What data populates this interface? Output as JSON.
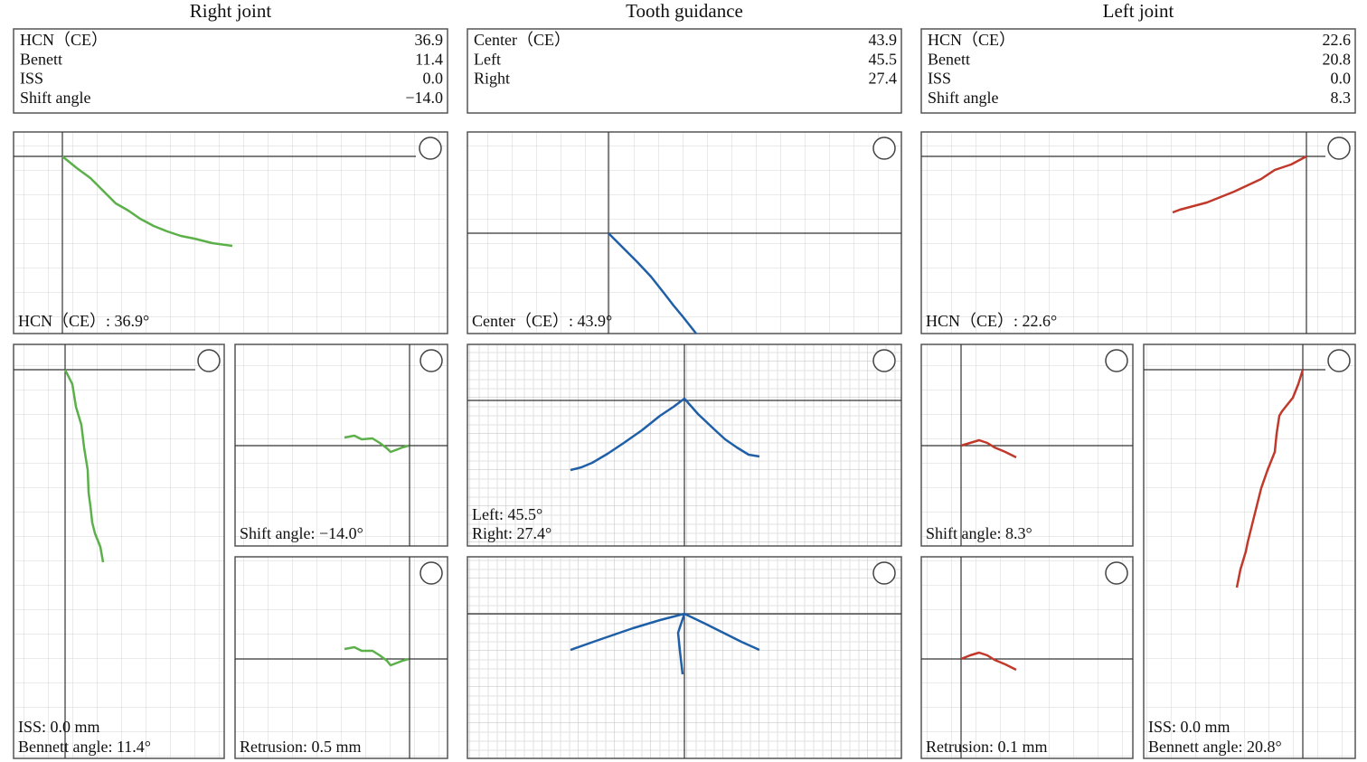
{
  "columns": [
    {
      "title": "Right joint",
      "info": [
        {
          "label": "HCN（CE）",
          "value": "36.9"
        },
        {
          "label": "Benett",
          "value": "11.4"
        },
        {
          "label": "ISS",
          "value": "0.0"
        },
        {
          "label": "Shift angle",
          "value": "−14.0"
        }
      ],
      "captions": [
        "HCN（CE）: 36.9°",
        "ISS: 0.0 mm",
        "Bennett angle: 11.4°",
        "Shift angle: −14.0°",
        "Retrusion: 0.5 mm"
      ]
    },
    {
      "title": "Tooth guidance",
      "info": [
        {
          "label": "Center（CE）",
          "value": "43.9"
        },
        {
          "label": "Left",
          "value": "45.5"
        },
        {
          "label": "Right",
          "value": "27.4"
        }
      ],
      "captions": [
        "Center（CE）: 43.9°",
        "Left: 45.5°",
        "Right: 27.4°"
      ]
    },
    {
      "title": "Left joint",
      "info": [
        {
          "label": "HCN（CE）",
          "value": "22.6"
        },
        {
          "label": "Benett",
          "value": "20.8"
        },
        {
          "label": "ISS",
          "value": "0.0"
        },
        {
          "label": "Shift angle",
          "value": "8.3"
        }
      ],
      "captions": [
        "HCN（CE）: 22.6°",
        "Shift angle: 8.3°",
        "Retrusion: 0.1 mm",
        "ISS: 0.0 mm",
        "Bennett angle: 20.8°"
      ]
    }
  ]
}
